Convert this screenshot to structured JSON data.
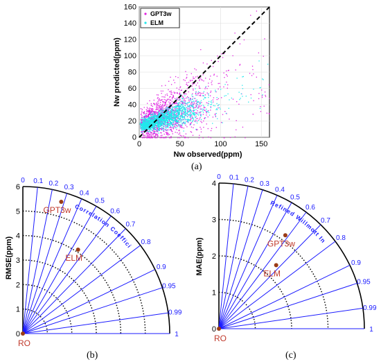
{
  "chart_data": [
    {
      "id": "a",
      "type": "scatter",
      "panel_label": "(a)",
      "xlabel": "Nw observed(ppm)",
      "ylabel": "Nw predicted(ppm)",
      "xlim": [
        0,
        160
      ],
      "ylim": [
        0,
        160
      ],
      "xticks": [
        "0",
        "50",
        "100",
        "150"
      ],
      "yticks": [
        "0",
        "20",
        "40",
        "60",
        "80",
        "100",
        "120",
        "140",
        "160"
      ],
      "reference_line": "1:1 dashed",
      "legend_position": "top-left",
      "series": [
        {
          "name": "GPT3w",
          "color": "#e020e0",
          "x_range": [
            0,
            160
          ],
          "y_range": [
            0,
            130
          ]
        },
        {
          "name": "ELM",
          "color": "#22e8ec",
          "x_range": [
            0,
            160
          ],
          "y_range": [
            0,
            125
          ]
        }
      ]
    },
    {
      "id": "b",
      "type": "taylor",
      "panel_label": "(b)",
      "ylabel": "RMSE(ppm)",
      "arc_label": "Correlation Coefficient",
      "radial_ticks": [
        "0",
        "1",
        "2",
        "3",
        "4",
        "5",
        "6"
      ],
      "radial_max": 6,
      "coef_ticks": [
        "0",
        "0.1",
        "0.2",
        "0.3",
        "0.4",
        "0.5",
        "0.6",
        "0.7",
        "0.8",
        "0.9",
        "0.95",
        "0.99",
        "1"
      ],
      "points": [
        {
          "name": "GPT3w",
          "r": 5.6,
          "coef": 0.28
        },
        {
          "name": "ELM",
          "r": 4.1,
          "coef": 0.55
        },
        {
          "name": "RO",
          "r": 0,
          "coef": 1
        }
      ]
    },
    {
      "id": "c",
      "type": "taylor",
      "panel_label": "(c)",
      "ylabel": "MAE(ppm)",
      "arc_label": "Refined Willmott Index",
      "radial_ticks": [
        "0",
        "1",
        "2",
        "3",
        "4"
      ],
      "radial_max": 4,
      "coef_ticks": [
        "0",
        "0.1",
        "0.2",
        "0.3",
        "0.4",
        "0.5",
        "0.6",
        "0.7",
        "0.8",
        "0.9",
        "0.95",
        "0.99",
        "1"
      ],
      "points": [
        {
          "name": "GPT3w",
          "r": 3.15,
          "coef": 0.58
        },
        {
          "name": "ELM",
          "r": 2.35,
          "coef": 0.67
        },
        {
          "name": "RO",
          "r": 0,
          "coef": 1
        }
      ]
    }
  ]
}
